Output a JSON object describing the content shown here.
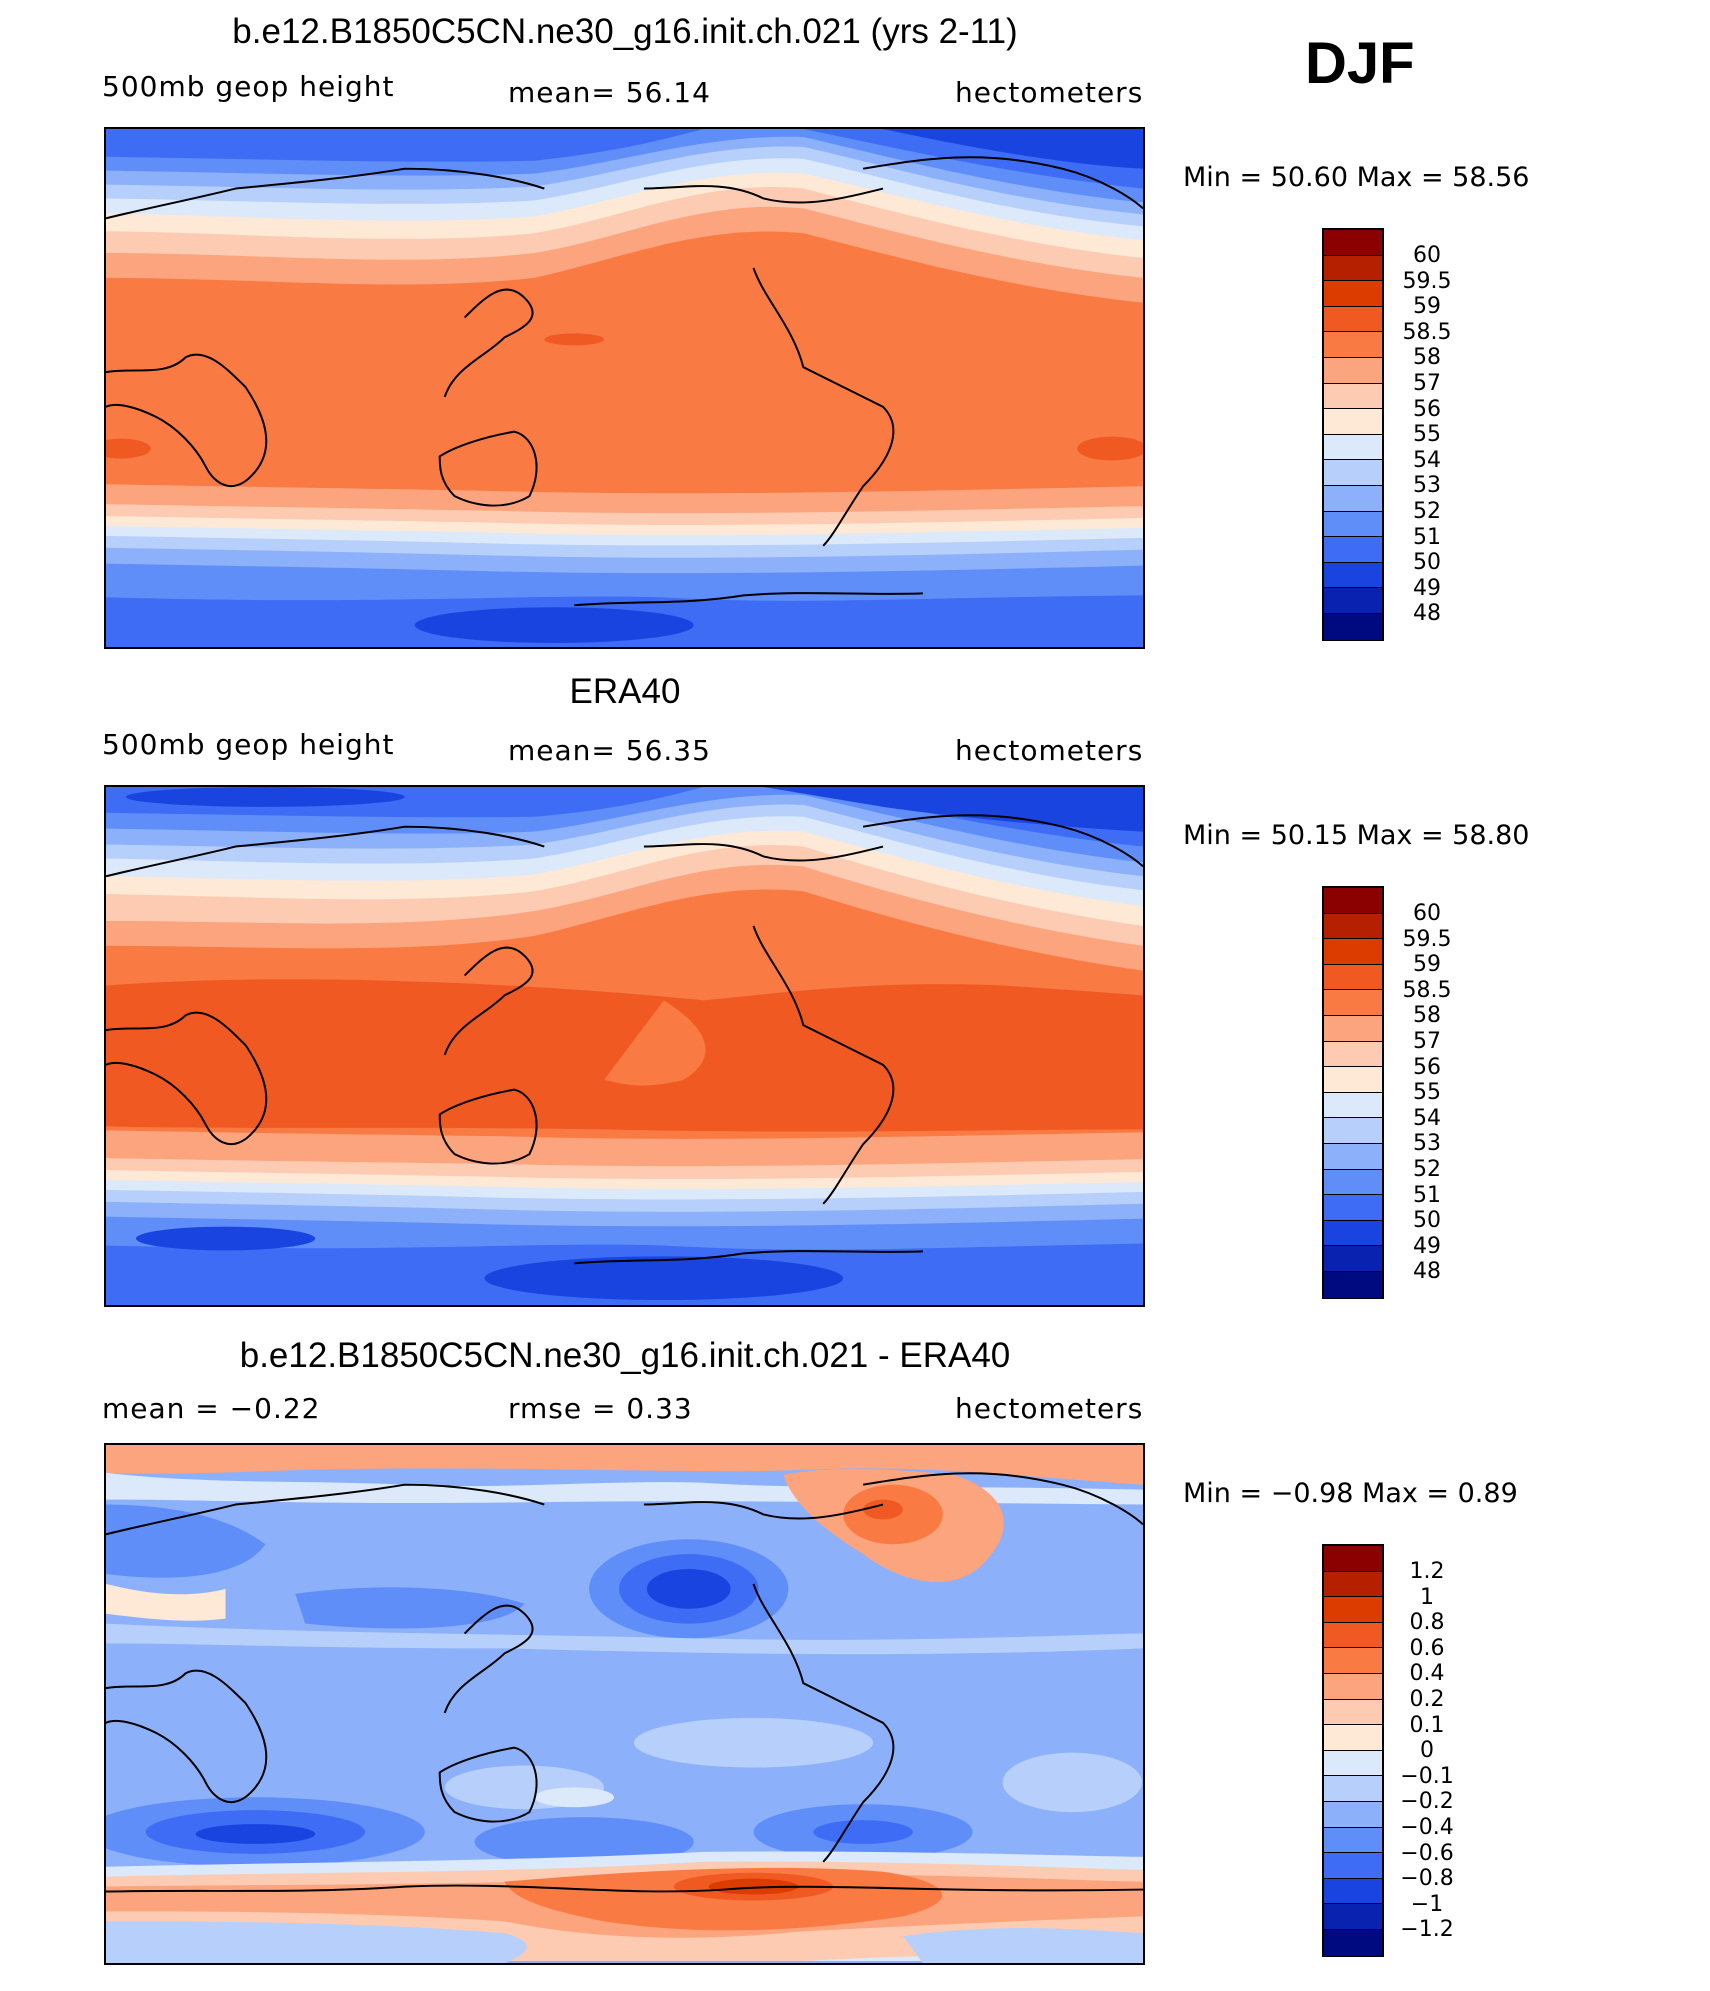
{
  "season": "DJF",
  "land_outline_color": "#000000",
  "panels": [
    {
      "title": "b.e12.B1850C5CN.ne30_g16.init.ch.021 (yrs 2-11)",
      "left_label": "500mb geop height",
      "center_label": "mean=  56.14",
      "units": "hectometers",
      "minmax": "Min =   50.60 Max =   58.56",
      "colorbar": {
        "levels": [
          "60",
          "59.5",
          "59",
          "58.5",
          "58",
          "57",
          "56",
          "55",
          "54",
          "53",
          "52",
          "51",
          "50",
          "49",
          "48"
        ],
        "colors": [
          "#8b0000",
          "#b52000",
          "#dc3c00",
          "#f05a22",
          "#fa7a44",
          "#fca47e",
          "#fdcbb2",
          "#fde9d6",
          "#dbe9fb",
          "#b6d0fb",
          "#8cb1fa",
          "#5f8ef8",
          "#3e6cf5",
          "#1a44e0",
          "#0a22b0",
          "#000a80"
        ]
      }
    },
    {
      "title": "ERA40",
      "left_label": "500mb geop height",
      "center_label": "mean=  56.35",
      "units": "hectometers",
      "minmax": "Min =   50.15 Max =   58.80",
      "colorbar": {
        "levels": [
          "60",
          "59.5",
          "59",
          "58.5",
          "58",
          "57",
          "56",
          "55",
          "54",
          "53",
          "52",
          "51",
          "50",
          "49",
          "48"
        ],
        "colors": [
          "#8b0000",
          "#b52000",
          "#dc3c00",
          "#f05a22",
          "#fa7a44",
          "#fca47e",
          "#fdcbb2",
          "#fde9d6",
          "#dbe9fb",
          "#b6d0fb",
          "#8cb1fa",
          "#5f8ef8",
          "#3e6cf5",
          "#1a44e0",
          "#0a22b0",
          "#000a80"
        ]
      }
    },
    {
      "title": "b.e12.B1850C5CN.ne30_g16.init.ch.021 - ERA40",
      "left_label": "mean =   −0.22",
      "center_label": "rmse =    0.33",
      "units": "hectometers",
      "minmax": "Min =  −0.98 Max =    0.89",
      "colorbar": {
        "levels": [
          "1.2",
          "1",
          "0.8",
          "0.6",
          "0.4",
          "0.2",
          "0.1",
          "0",
          "−0.1",
          "−0.2",
          "−0.4",
          "−0.6",
          "−0.8",
          "−1",
          "−1.2"
        ],
        "colors": [
          "#8b0000",
          "#b52000",
          "#dc3c00",
          "#f05a22",
          "#fa7a44",
          "#fca47e",
          "#fdcbb2",
          "#fde9d6",
          "#dbe9fb",
          "#b6d0fb",
          "#8cb1fa",
          "#5f8ef8",
          "#3e6cf5",
          "#1a44e0",
          "#0a22b0",
          "#000a80"
        ]
      }
    }
  ]
}
